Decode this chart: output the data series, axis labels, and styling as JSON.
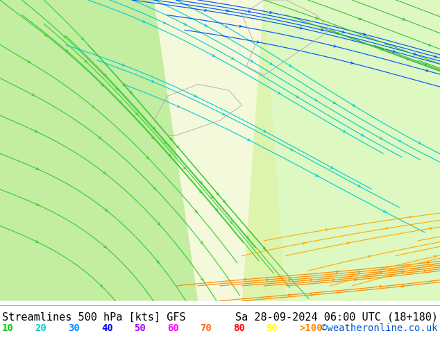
{
  "title_left": "Streamlines 500 hPa [kts] GFS",
  "title_right": "Sa 28-09-2024 06:00 UTC (18+180)",
  "credit": "©weatheronline.co.uk",
  "legend_values": [
    "10",
    "20",
    "30",
    "40",
    "50",
    "60",
    "70",
    "80",
    "90",
    ">100"
  ],
  "legend_colors": [
    "#00cc00",
    "#00cccc",
    "#0088ff",
    "#0000ff",
    "#aa00ff",
    "#ff00ff",
    "#ff6600",
    "#ff0000",
    "#ffff00",
    "#ff8800"
  ],
  "bg_color": "#99dd55",
  "map_bg": "#99dd55",
  "white_bg": "#ffffff",
  "bottom_bar_color": "#ffffff",
  "font_family": "monospace",
  "title_fontsize": 11,
  "legend_fontsize": 10,
  "credit_fontsize": 10,
  "streamline_color_slow": "#33cc33",
  "streamline_color_mid": "#00cccc",
  "streamline_color_fast": "#0055ff",
  "streamline_color_vfast": "#ff8800",
  "fig_width": 6.34,
  "fig_height": 4.9
}
